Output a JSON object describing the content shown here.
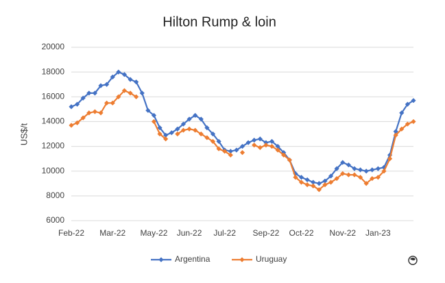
{
  "chart_data": {
    "type": "line",
    "title": "Hilton Rump & loin",
    "y_label": "US$/t",
    "categories": [
      "Feb-22",
      null,
      null,
      null,
      null,
      null,
      null,
      "Mar-22",
      null,
      null,
      null,
      null,
      null,
      null,
      "May-22",
      null,
      null,
      null,
      null,
      null,
      "Jun-22",
      null,
      null,
      null,
      null,
      null,
      "Jul-22",
      null,
      null,
      null,
      null,
      null,
      null,
      "Sep-22",
      null,
      null,
      null,
      null,
      null,
      "Oct-22",
      null,
      null,
      null,
      null,
      null,
      null,
      "Nov-22",
      null,
      null,
      null,
      null,
      null,
      "Jan-23",
      null,
      null,
      null,
      null,
      null,
      null
    ],
    "series": [
      {
        "name": "Argentina",
        "color": "#4472c4",
        "values": [
          15200,
          15400,
          15900,
          16300,
          16300,
          16900,
          17000,
          17600,
          18000,
          17800,
          17400,
          17200,
          16300,
          14900,
          14500,
          13500,
          12900,
          13100,
          13400,
          13800,
          14200,
          14500,
          14200,
          13500,
          13000,
          12400,
          11700,
          11600,
          11700,
          12000,
          12300,
          12500,
          12600,
          12300,
          12400,
          12000,
          11500,
          10900,
          9800,
          9500,
          9300,
          9100,
          9000,
          9200,
          9600,
          10200,
          10700,
          10500,
          10200,
          10100,
          10000,
          10100,
          10200,
          10300,
          11300,
          13200,
          14700,
          15400,
          15700
        ]
      },
      {
        "name": "Uruguay",
        "color": "#ed7d31",
        "values": [
          13700,
          13900,
          14300,
          14700,
          14800,
          14700,
          15500,
          15500,
          16000,
          16500,
          16300,
          16000,
          null,
          null,
          14000,
          13000,
          12600,
          null,
          13000,
          13300,
          13400,
          13300,
          13000,
          12700,
          12400,
          11800,
          11600,
          11300,
          null,
          11500,
          null,
          12100,
          11900,
          12100,
          12000,
          11700,
          11300,
          10900,
          9500,
          9100,
          8900,
          8800,
          8500,
          8900,
          9100,
          9400,
          9800,
          9700,
          9700,
          9500,
          9000,
          9400,
          9500,
          10000,
          11000,
          12900,
          13400,
          13800,
          14000
        ]
      }
    ],
    "ylim": [
      6000,
      20000
    ],
    "yticks": [
      6000,
      8000,
      10000,
      12000,
      14000,
      16000,
      18000,
      20000
    ],
    "grid": true,
    "legend": "bottom"
  }
}
